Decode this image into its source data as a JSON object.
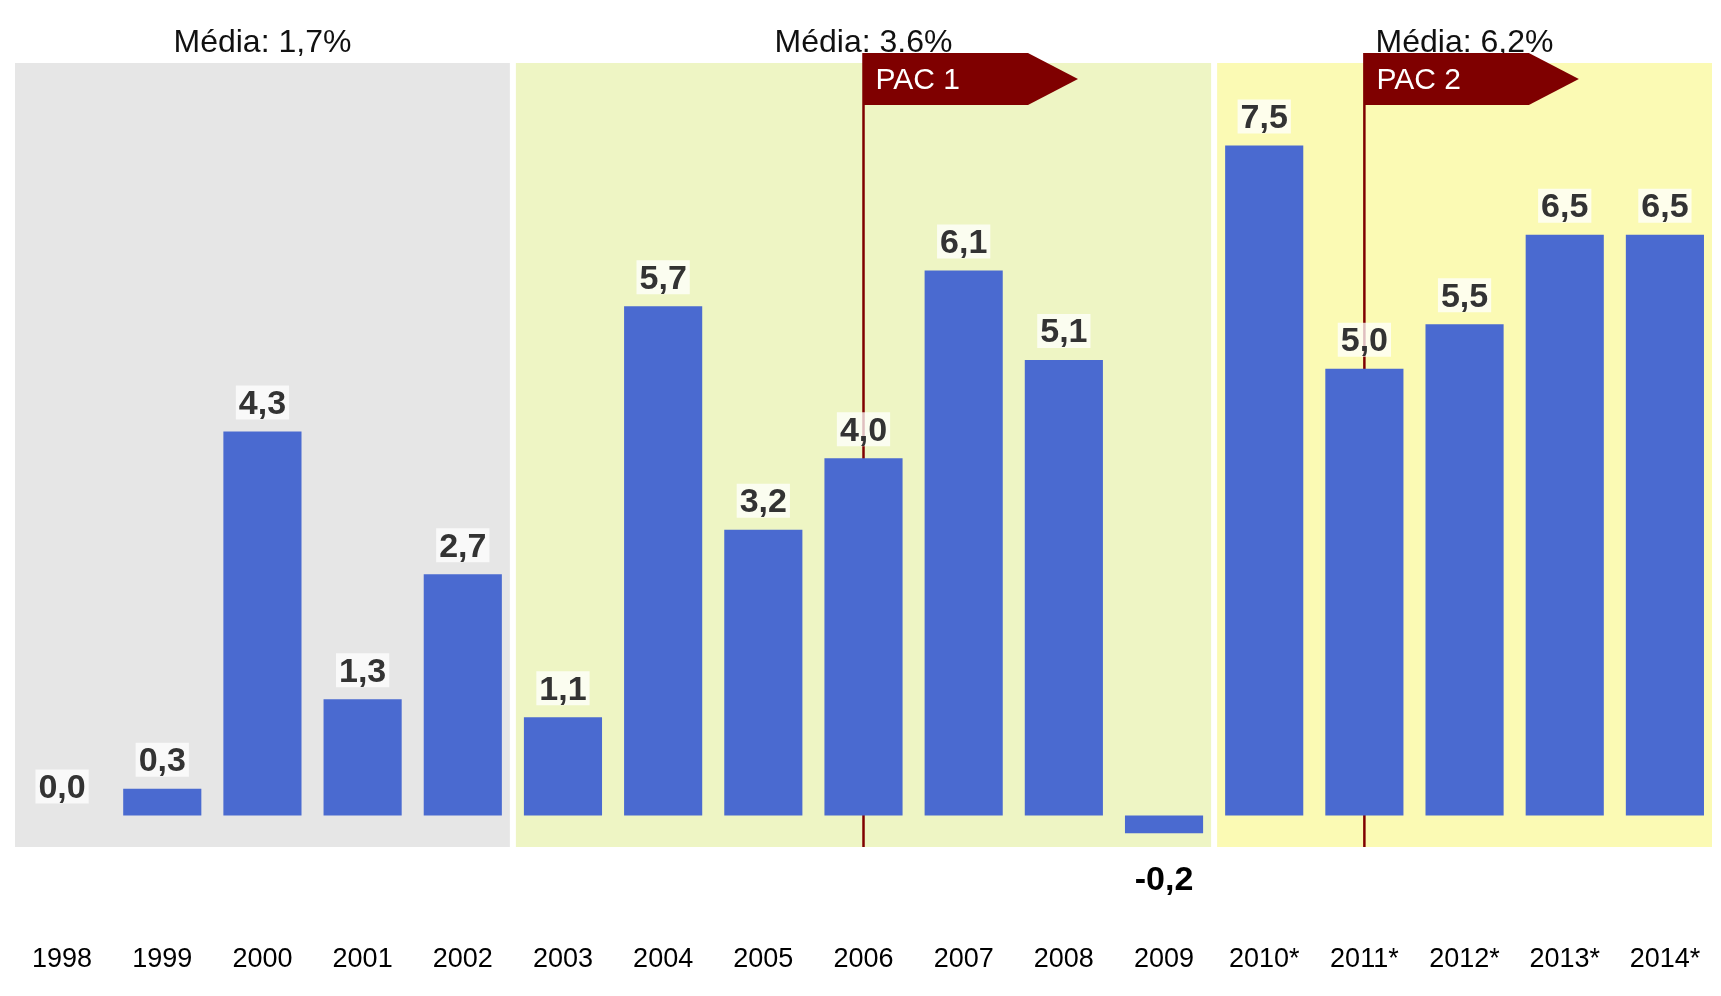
{
  "chart_data": {
    "type": "bar",
    "categories": [
      "1998",
      "1999",
      "2000",
      "2001",
      "2002",
      "2003",
      "2004",
      "2005",
      "2006",
      "2007",
      "2008",
      "2009",
      "2010*",
      "2011*",
      "2012*",
      "2013*",
      "2014*"
    ],
    "values": [
      0.0,
      0.3,
      4.3,
      1.3,
      2.7,
      1.1,
      5.7,
      3.2,
      4.0,
      6.1,
      5.1,
      -0.2,
      7.5,
      5.0,
      5.5,
      6.5,
      6.5
    ],
    "value_labels": [
      "0,0",
      "0,3",
      "4,3",
      "1,3",
      "2,7",
      "1,1",
      "5,7",
      "3,2",
      "4,0",
      "6,1",
      "5,1",
      "-0,2",
      "7,5",
      "5,0",
      "5,5",
      "6,5",
      "6,5"
    ],
    "color": "#4a6ad0",
    "bands": [
      {
        "axis": "x",
        "from": "1998",
        "to": "2002",
        "label": "Média: 1,7%",
        "color": "#e6e6e6"
      },
      {
        "axis": "x",
        "from": "2003",
        "to": "2009",
        "label": "Média: 3.6%",
        "color": "#eef5c4"
      },
      {
        "axis": "x",
        "from": "2010*",
        "to": "2014*",
        "label": "Média: 6,2%",
        "color": "#fbfab4"
      }
    ],
    "ref_lines": [
      {
        "axis": "x",
        "value": "2006",
        "label": "PAC 1",
        "color": "#7f0000"
      },
      {
        "axis": "x",
        "value": "2011*",
        "label": "PAC 2",
        "color": "#7f0000"
      }
    ],
    "grid": false,
    "legend": false
  }
}
